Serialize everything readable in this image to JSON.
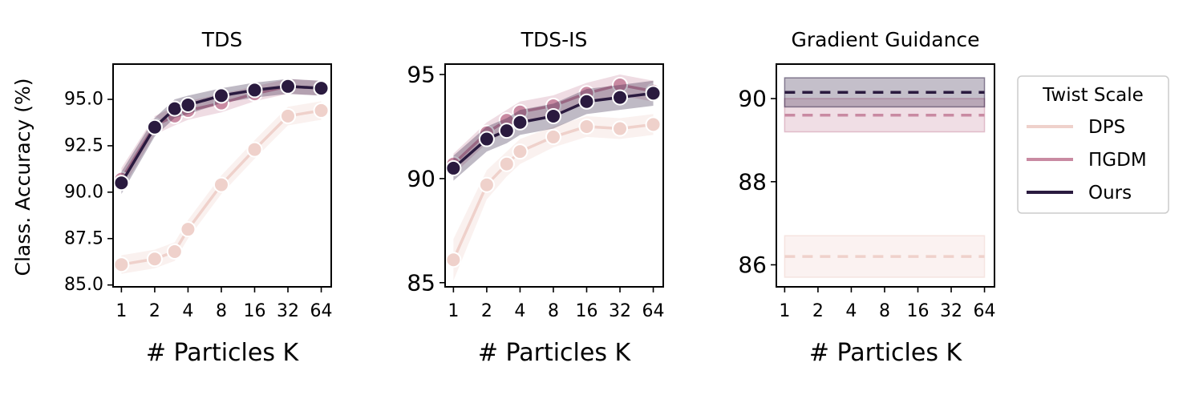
{
  "figure": {
    "ylabel": "Class. Accuracy (%)",
    "legend": {
      "title": "Twist Scale",
      "entries": [
        "DPS",
        "ΠGDM",
        "Ours"
      ]
    }
  },
  "colors": {
    "DPS": "#efd1cb",
    "PiGDM": "#c98aa2",
    "Ours": "#2a1a3f"
  },
  "chart_data": [
    {
      "type": "line",
      "title": "TDS",
      "xlabel": "# Particles K",
      "ylabel": "Class. Accuracy (%)",
      "x_tick_labels": [
        "1",
        "2",
        "4",
        "8",
        "16",
        "32",
        "64"
      ],
      "x": [
        1,
        2,
        3,
        4,
        5,
        6,
        7
      ],
      "xlim": [
        0.75,
        7.3
      ],
      "ylim": [
        84.9,
        96.9
      ],
      "yticks": [
        85.0,
        87.5,
        90.0,
        92.5,
        95.0
      ],
      "ytick_labels": [
        "85.0",
        "87.5",
        "90.0",
        "92.5",
        "95.0"
      ],
      "grid": false,
      "series": [
        {
          "name": "DPS",
          "x": [
            1,
            2,
            2.6,
            3,
            4,
            5,
            6,
            7
          ],
          "values": [
            86.1,
            86.4,
            86.8,
            88.0,
            90.4,
            92.3,
            94.1,
            94.4
          ],
          "lower": [
            85.6,
            85.9,
            86.3,
            87.5,
            89.9,
            91.8,
            93.6,
            93.9
          ],
          "upper": [
            86.6,
            86.9,
            87.3,
            88.5,
            90.9,
            92.8,
            94.6,
            94.9
          ]
        },
        {
          "name": "PiGDM",
          "x": [
            1,
            2,
            2.6,
            3,
            4,
            5,
            6,
            7
          ],
          "values": [
            90.7,
            93.6,
            94.1,
            94.4,
            94.8,
            95.3,
            95.7,
            95.6
          ],
          "lower": [
            90.1,
            93.1,
            93.6,
            93.9,
            94.3,
            94.9,
            95.3,
            95.2
          ],
          "upper": [
            91.3,
            94.1,
            94.6,
            94.9,
            95.3,
            95.7,
            96.1,
            96.0
          ]
        },
        {
          "name": "Ours",
          "x": [
            1,
            2,
            2.6,
            3,
            4,
            5,
            6,
            7
          ],
          "values": [
            90.5,
            93.5,
            94.5,
            94.7,
            95.2,
            95.5,
            95.7,
            95.6
          ],
          "lower": [
            89.9,
            93.0,
            94.0,
            94.2,
            94.8,
            95.1,
            95.3,
            95.2
          ],
          "upper": [
            91.1,
            94.0,
            95.0,
            95.2,
            95.6,
            95.9,
            96.1,
            96.0
          ]
        }
      ]
    },
    {
      "type": "line",
      "title": "TDS-IS",
      "xlabel": "# Particles K",
      "x_tick_labels": [
        "1",
        "2",
        "4",
        "8",
        "16",
        "32",
        "64"
      ],
      "x": [
        1,
        2,
        3,
        4,
        5,
        6,
        7
      ],
      "xlim": [
        0.75,
        7.3
      ],
      "ylim": [
        84.8,
        95.5
      ],
      "yticks": [
        85,
        90,
        95
      ],
      "ytick_labels": [
        "85",
        "90",
        "95"
      ],
      "grid": false,
      "series": [
        {
          "name": "DPS",
          "x": [
            1,
            2,
            2.6,
            3,
            4,
            5,
            6,
            7
          ],
          "values": [
            86.1,
            89.7,
            90.7,
            91.3,
            92.0,
            92.5,
            92.4,
            92.6
          ],
          "lower": [
            85.1,
            89.0,
            90.1,
            90.7,
            91.5,
            92.0,
            91.9,
            92.1
          ],
          "upper": [
            87.1,
            90.4,
            91.3,
            91.9,
            92.5,
            93.0,
            92.9,
            93.1
          ]
        },
        {
          "name": "PiGDM",
          "x": [
            1,
            2,
            2.6,
            3,
            4,
            5,
            6,
            7
          ],
          "values": [
            90.7,
            92.2,
            92.8,
            93.2,
            93.5,
            94.1,
            94.5,
            94.2
          ],
          "lower": [
            90.2,
            91.7,
            92.3,
            92.7,
            93.0,
            93.6,
            94.0,
            93.7
          ],
          "upper": [
            91.2,
            92.7,
            93.3,
            93.7,
            94.0,
            94.6,
            95.0,
            94.7
          ]
        },
        {
          "name": "Ours",
          "x": [
            1,
            2,
            2.6,
            3,
            4,
            5,
            6,
            7
          ],
          "values": [
            90.5,
            91.9,
            92.3,
            92.7,
            93.0,
            93.7,
            93.9,
            94.1
          ],
          "lower": [
            89.9,
            91.3,
            91.7,
            92.1,
            92.4,
            93.1,
            93.3,
            93.5
          ],
          "upper": [
            91.1,
            92.5,
            92.9,
            93.3,
            93.6,
            94.3,
            94.5,
            94.7
          ]
        }
      ]
    },
    {
      "type": "line",
      "title": "Gradient Guidance",
      "xlabel": "# Particles K",
      "x_tick_labels": [
        "1",
        "2",
        "4",
        "8",
        "16",
        "32",
        "64"
      ],
      "x": [
        1,
        2,
        3,
        4,
        5,
        6,
        7
      ],
      "xlim": [
        0.75,
        7.3
      ],
      "ylim": [
        85.47,
        90.83
      ],
      "yticks": [
        86,
        88,
        90
      ],
      "ytick_labels": [
        "86",
        "88",
        "90"
      ],
      "grid": false,
      "series": [
        {
          "name": "DPS",
          "style": "dashed",
          "value": 86.2,
          "lower": 85.7,
          "upper": 86.7
        },
        {
          "name": "PiGDM",
          "style": "dashed",
          "value": 89.6,
          "lower": 89.2,
          "upper": 90.0
        },
        {
          "name": "Ours",
          "style": "dashed",
          "value": 90.15,
          "lower": 89.8,
          "upper": 90.5
        }
      ]
    }
  ]
}
